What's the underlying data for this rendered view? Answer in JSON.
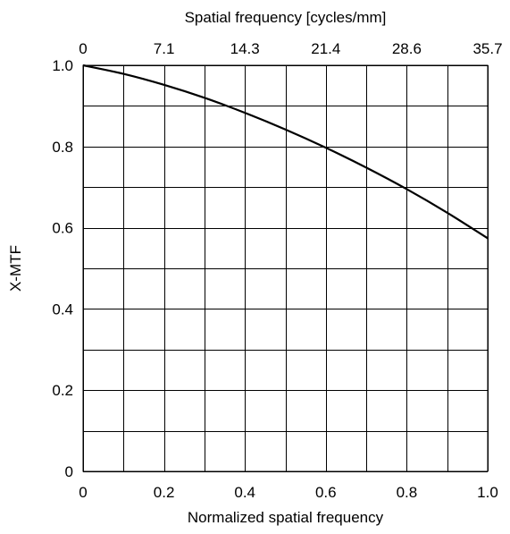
{
  "chart_data": {
    "type": "line",
    "title": "",
    "xlabel": "Normalized spatial frequency",
    "ylabel": "X-MTF",
    "x2label": "Spatial frequency [cycles/mm]",
    "xlim": [
      0,
      1
    ],
    "ylim": [
      0,
      1
    ],
    "grid": true,
    "x_ticks": [
      0,
      0.1,
      0.2,
      0.3,
      0.4,
      0.5,
      0.6,
      0.7,
      0.8,
      0.9,
      1.0
    ],
    "x_tick_labels": [
      {
        "value": 0,
        "label": "0"
      },
      {
        "value": 0.2,
        "label": "0.2"
      },
      {
        "value": 0.4,
        "label": "0.4"
      },
      {
        "value": 0.6,
        "label": "0.6"
      },
      {
        "value": 0.8,
        "label": "0.8"
      },
      {
        "value": 1.0,
        "label": "1.0"
      }
    ],
    "x2_tick_labels": [
      {
        "value": 0,
        "label": "0"
      },
      {
        "value": 0.2,
        "label": "7.1"
      },
      {
        "value": 0.4,
        "label": "14.3"
      },
      {
        "value": 0.6,
        "label": "21.4"
      },
      {
        "value": 0.8,
        "label": "28.6"
      },
      {
        "value": 1.0,
        "label": "35.7"
      }
    ],
    "y_ticks": [
      0,
      0.1,
      0.2,
      0.3,
      0.4,
      0.5,
      0.6,
      0.7,
      0.8,
      0.9,
      1.0
    ],
    "y_tick_labels": [
      {
        "value": 0,
        "label": "0"
      },
      {
        "value": 0.2,
        "label": "0.2"
      },
      {
        "value": 0.4,
        "label": "0.4"
      },
      {
        "value": 0.6,
        "label": "0.6"
      },
      {
        "value": 0.8,
        "label": "0.8"
      },
      {
        "value": 1.0,
        "label": "1.0"
      }
    ],
    "series": [
      {
        "color": "#000000",
        "x": [
          0,
          0.1,
          0.2,
          0.3,
          0.4,
          0.5,
          0.6,
          0.7,
          0.8,
          0.9,
          1.0
        ],
        "y": [
          1.0,
          0.979,
          0.952,
          0.92,
          0.883,
          0.842,
          0.797,
          0.748,
          0.695,
          0.637,
          0.574
        ]
      }
    ]
  }
}
